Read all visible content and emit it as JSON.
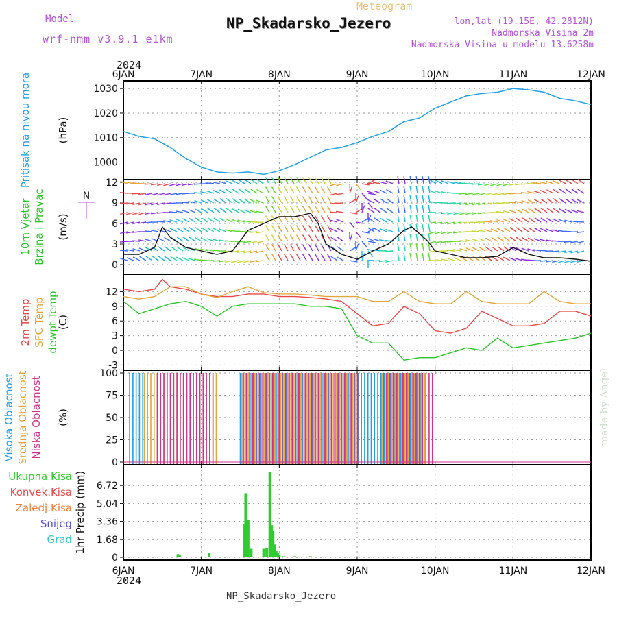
{
  "header": {
    "model_label": "Model",
    "model_version": "wrf-nmm_v3.9.1  e1km",
    "meteogram_label": "Meteogram",
    "station": "NP_Skadarsko_Jezero",
    "lonlat": "lon,lat (19.15E, 42.2812N)",
    "elevation": "Nadmorska Visina 2m",
    "model_elevation": "Nadmorska Visina u modelu 13.6258m",
    "year_top": "2024"
  },
  "footer": {
    "year": "2024",
    "station": "NP_Skadarsko_Jezero",
    "credit": "made by Angel"
  },
  "colors": {
    "pressure": "#1ea0e6",
    "wind_speed": "#111111",
    "temp2m": "#e84848",
    "sfc": "#e3a63a",
    "dew": "#27c427",
    "high_cloud": "#1ea0e6",
    "mid_cloud": "#e3a63a",
    "low_cloud": "#d2338a",
    "total_precip": "#2ecc2e",
    "grid": "#999999"
  },
  "chart_data": [
    {
      "type": "line",
      "panel": "pressure",
      "ylabel_lines": [
        "Pritisak na nivou mora"
      ],
      "unit": "(hPa)",
      "xlim": [
        0,
        6
      ],
      "xticks": [
        "6JAN",
        "7JAN",
        "8JAN",
        "9JAN",
        "10JAN",
        "11JAN",
        "12JAN"
      ],
      "ylim": [
        994,
        1032
      ],
      "yticks": [
        "1030",
        "1020",
        "1010",
        "1000"
      ],
      "ytick_values": [
        1030,
        1020,
        1010,
        1000
      ],
      "series": [
        {
          "name": "Pritisak na nivou mora",
          "x": [
            0,
            0.2,
            0.4,
            0.6,
            0.8,
            1.0,
            1.2,
            1.4,
            1.6,
            1.8,
            2.0,
            2.2,
            2.4,
            2.6,
            2.8,
            3.0,
            3.2,
            3.4,
            3.6,
            3.8,
            4.0,
            4.2,
            4.4,
            4.6,
            4.8,
            5.0,
            5.2,
            5.4,
            5.6,
            5.8,
            6.0
          ],
          "values": [
            1012.5,
            1010.5,
            1009.5,
            1006,
            1001.5,
            998,
            996,
            995.5,
            996,
            995,
            996.5,
            999,
            1002,
            1005,
            1006,
            1008,
            1010.5,
            1012.5,
            1016.5,
            1018,
            1022,
            1024.5,
            1027,
            1028,
            1028.5,
            1030,
            1029.5,
            1028.5,
            1026,
            1025,
            1023.5
          ]
        }
      ]
    },
    {
      "type": "line",
      "panel": "wind",
      "ylabel_lines": [
        "10m Vjetar",
        "Brzina i Pravac"
      ],
      "unit": "(m/s)",
      "compass": "N",
      "xlim": [
        0,
        6
      ],
      "ylim": [
        -1,
        12
      ],
      "yticks": [
        "12",
        "9",
        "6",
        "3",
        "0"
      ],
      "ytick_values": [
        12,
        9,
        6,
        3,
        0
      ],
      "series": [
        {
          "name": "10m Vjetar",
          "x": [
            0,
            0.2,
            0.4,
            0.5,
            0.6,
            0.8,
            1.0,
            1.2,
            1.4,
            1.6,
            1.8,
            2.0,
            2.2,
            2.4,
            2.5,
            2.6,
            2.8,
            3.0,
            3.2,
            3.4,
            3.6,
            3.7,
            3.9,
            4.0,
            4.2,
            4.4,
            4.6,
            4.8,
            5.0,
            5.2,
            5.4,
            5.6,
            5.8,
            6.0
          ],
          "values": [
            1.5,
            1.5,
            2.5,
            5.5,
            4,
            2.5,
            2,
            1.5,
            2,
            5,
            6,
            7,
            7,
            7.5,
            6,
            3,
            1.5,
            0.8,
            2,
            3,
            5,
            5.5,
            3.5,
            2,
            1.5,
            1,
            1,
            1.2,
            2.5,
            1.5,
            1,
            1,
            0.8,
            0.5
          ]
        }
      ]
    },
    {
      "type": "line",
      "panel": "temperature",
      "ylabel_lines": [
        "2m Temp",
        "SFC Temp",
        "dewpt Temp"
      ],
      "unit": "(C)",
      "xlim": [
        0,
        6
      ],
      "ylim": [
        -3.5,
        15
      ],
      "yticks": [
        "12",
        "9",
        "6",
        "3",
        "0",
        "-3"
      ],
      "ytick_values": [
        12,
        9,
        6,
        3,
        0,
        -3
      ],
      "series": [
        {
          "name": "2m Temp",
          "x": [
            0,
            0.2,
            0.4,
            0.5,
            0.6,
            0.8,
            1.0,
            1.2,
            1.4,
            1.6,
            1.8,
            2.0,
            2.2,
            2.4,
            2.6,
            2.8,
            3.0,
            3.2,
            3.4,
            3.6,
            3.8,
            4.0,
            4.2,
            4.4,
            4.6,
            4.8,
            5.0,
            5.2,
            5.4,
            5.6,
            5.8,
            6.0
          ],
          "values": [
            12.5,
            12,
            12.5,
            14.5,
            13,
            12.5,
            11.5,
            11,
            11,
            11.5,
            11.5,
            11,
            11,
            10.8,
            10.5,
            10,
            7.5,
            5,
            5.5,
            9,
            7.5,
            4,
            3.5,
            4.5,
            8,
            6.5,
            5,
            5,
            5.5,
            8,
            8,
            7
          ]
        },
        {
          "name": "SFC Temp",
          "x": [
            0,
            0.2,
            0.4,
            0.6,
            0.8,
            1.0,
            1.2,
            1.4,
            1.6,
            1.8,
            2.0,
            2.2,
            2.4,
            2.6,
            2.8,
            3.0,
            3.2,
            3.4,
            3.6,
            3.8,
            4.0,
            4.2,
            4.4,
            4.6,
            4.8,
            5.0,
            5.2,
            5.4,
            5.6,
            5.8,
            6.0
          ],
          "values": [
            11,
            10.5,
            11,
            13,
            13,
            11.5,
            10.8,
            12,
            13,
            11.8,
            11.5,
            11.5,
            11.3,
            11,
            11,
            11,
            10,
            10,
            12,
            10,
            9.5,
            9.5,
            12,
            10,
            9.5,
            9.5,
            9.5,
            12,
            10,
            9.5,
            9.5
          ]
        },
        {
          "name": "dewpt Temp",
          "x": [
            0,
            0.2,
            0.4,
            0.6,
            0.8,
            1.0,
            1.2,
            1.4,
            1.6,
            1.8,
            2.0,
            2.2,
            2.4,
            2.6,
            2.8,
            3.0,
            3.2,
            3.4,
            3.6,
            3.8,
            4.0,
            4.2,
            4.4,
            4.6,
            4.8,
            5.0,
            5.2,
            5.4,
            5.6,
            5.8,
            6.0
          ],
          "values": [
            10,
            7.5,
            8.5,
            9.5,
            10,
            9,
            7,
            9,
            9.5,
            9.5,
            9.5,
            9.5,
            9,
            9,
            8.5,
            3,
            1.5,
            1.5,
            -2,
            -1.5,
            -1.5,
            -0.5,
            0.5,
            0,
            2.5,
            0.5,
            1,
            1.5,
            2,
            2.5,
            3.5
          ]
        }
      ]
    },
    {
      "type": "bar",
      "panel": "cloud",
      "ylabel_lines": [
        "Visoka Oblacnost",
        "Srednja Oblacnost",
        "Niska Oblacnost"
      ],
      "unit": "(%)",
      "xlim": [
        0,
        6
      ],
      "ylim": [
        0,
        100
      ],
      "yticks": [
        "100",
        "75",
        "50",
        "25",
        "0"
      ],
      "ytick_values": [
        100,
        75,
        50,
        25,
        0
      ],
      "series": [
        {
          "name": "Visoka Oblacnost",
          "ranges": [
            [
              0.08,
              0.25,
              100
            ],
            [
              1.5,
              3.85,
              100
            ]
          ]
        },
        {
          "name": "Srednja Oblacnost",
          "ranges": [
            [
              0.25,
              1.2,
              100
            ],
            [
              1.5,
              3.0,
              100
            ],
            [
              3.3,
              3.85,
              100
            ]
          ]
        },
        {
          "name": "Niska Oblacnost",
          "ranges": [
            [
              0.4,
              1.15,
              100
            ],
            [
              1.5,
              3.0,
              100
            ],
            [
              3.3,
              3.95,
              100
            ]
          ]
        }
      ]
    },
    {
      "type": "bar",
      "panel": "precipitation",
      "ylabel_lines": [
        "Ukupna Kisa",
        "Konvek.Kisa",
        "Zaledj.Kisa",
        "Snijeg",
        "Grad"
      ],
      "unit": "1hr Precip (mm)",
      "xlim": [
        0,
        6
      ],
      "ylim": [
        0,
        8.4
      ],
      "yticks": [
        "6.72",
        "5.04",
        "3.36",
        "1.68",
        "0"
      ],
      "ytick_values": [
        6.72,
        5.04,
        3.36,
        1.68,
        0
      ],
      "series": [
        {
          "name": "Ukupna Kisa",
          "x": [
            0.7,
            0.72,
            1.1,
            1.55,
            1.57,
            1.6,
            1.64,
            1.8,
            1.84,
            1.88,
            1.9,
            1.92,
            1.94,
            1.96,
            1.98,
            2.0,
            2.05,
            2.2,
            2.4
          ],
          "values": [
            0.3,
            0.2,
            0.4,
            3.1,
            6.0,
            3.5,
            0.8,
            0.8,
            0.9,
            8.0,
            3.0,
            2.5,
            1.2,
            0.6,
            0.4,
            0.2,
            0.1,
            0.1,
            0.1
          ]
        }
      ]
    }
  ]
}
